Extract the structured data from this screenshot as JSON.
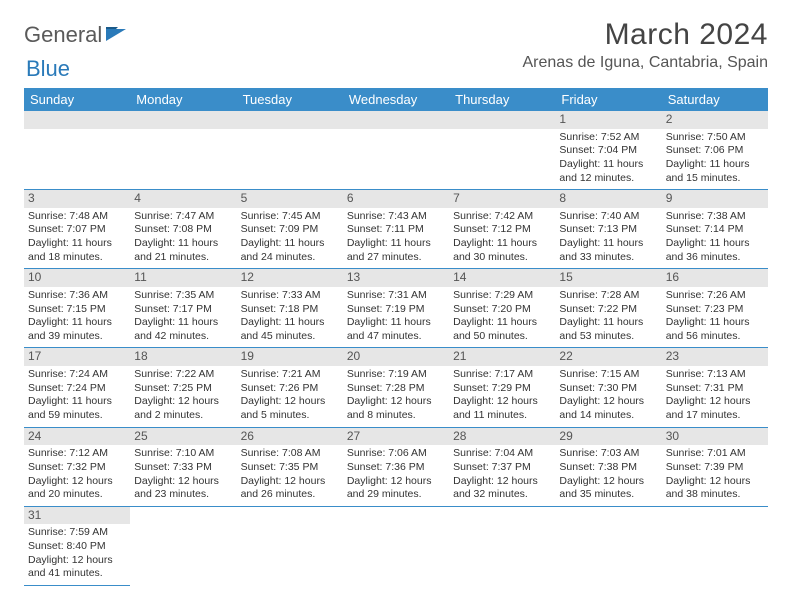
{
  "brand": {
    "part1": "General",
    "part2": "Blue"
  },
  "title": "March 2024",
  "location": "Arenas de Iguna, Cantabria, Spain",
  "colors": {
    "accent": "#3a8dc9",
    "header_bg": "#3a8dc9",
    "day_bar": "#e6e6e6"
  },
  "weekdays": [
    "Sunday",
    "Monday",
    "Tuesday",
    "Wednesday",
    "Thursday",
    "Friday",
    "Saturday"
  ],
  "weeks": [
    [
      null,
      null,
      null,
      null,
      null,
      {
        "n": "1",
        "sunrise": "Sunrise: 7:52 AM",
        "sunset": "Sunset: 7:04 PM",
        "daylight": "Daylight: 11 hours and 12 minutes."
      },
      {
        "n": "2",
        "sunrise": "Sunrise: 7:50 AM",
        "sunset": "Sunset: 7:06 PM",
        "daylight": "Daylight: 11 hours and 15 minutes."
      }
    ],
    [
      {
        "n": "3",
        "sunrise": "Sunrise: 7:48 AM",
        "sunset": "Sunset: 7:07 PM",
        "daylight": "Daylight: 11 hours and 18 minutes."
      },
      {
        "n": "4",
        "sunrise": "Sunrise: 7:47 AM",
        "sunset": "Sunset: 7:08 PM",
        "daylight": "Daylight: 11 hours and 21 minutes."
      },
      {
        "n": "5",
        "sunrise": "Sunrise: 7:45 AM",
        "sunset": "Sunset: 7:09 PM",
        "daylight": "Daylight: 11 hours and 24 minutes."
      },
      {
        "n": "6",
        "sunrise": "Sunrise: 7:43 AM",
        "sunset": "Sunset: 7:11 PM",
        "daylight": "Daylight: 11 hours and 27 minutes."
      },
      {
        "n": "7",
        "sunrise": "Sunrise: 7:42 AM",
        "sunset": "Sunset: 7:12 PM",
        "daylight": "Daylight: 11 hours and 30 minutes."
      },
      {
        "n": "8",
        "sunrise": "Sunrise: 7:40 AM",
        "sunset": "Sunset: 7:13 PM",
        "daylight": "Daylight: 11 hours and 33 minutes."
      },
      {
        "n": "9",
        "sunrise": "Sunrise: 7:38 AM",
        "sunset": "Sunset: 7:14 PM",
        "daylight": "Daylight: 11 hours and 36 minutes."
      }
    ],
    [
      {
        "n": "10",
        "sunrise": "Sunrise: 7:36 AM",
        "sunset": "Sunset: 7:15 PM",
        "daylight": "Daylight: 11 hours and 39 minutes."
      },
      {
        "n": "11",
        "sunrise": "Sunrise: 7:35 AM",
        "sunset": "Sunset: 7:17 PM",
        "daylight": "Daylight: 11 hours and 42 minutes."
      },
      {
        "n": "12",
        "sunrise": "Sunrise: 7:33 AM",
        "sunset": "Sunset: 7:18 PM",
        "daylight": "Daylight: 11 hours and 45 minutes."
      },
      {
        "n": "13",
        "sunrise": "Sunrise: 7:31 AM",
        "sunset": "Sunset: 7:19 PM",
        "daylight": "Daylight: 11 hours and 47 minutes."
      },
      {
        "n": "14",
        "sunrise": "Sunrise: 7:29 AM",
        "sunset": "Sunset: 7:20 PM",
        "daylight": "Daylight: 11 hours and 50 minutes."
      },
      {
        "n": "15",
        "sunrise": "Sunrise: 7:28 AM",
        "sunset": "Sunset: 7:22 PM",
        "daylight": "Daylight: 11 hours and 53 minutes."
      },
      {
        "n": "16",
        "sunrise": "Sunrise: 7:26 AM",
        "sunset": "Sunset: 7:23 PM",
        "daylight": "Daylight: 11 hours and 56 minutes."
      }
    ],
    [
      {
        "n": "17",
        "sunrise": "Sunrise: 7:24 AM",
        "sunset": "Sunset: 7:24 PM",
        "daylight": "Daylight: 11 hours and 59 minutes."
      },
      {
        "n": "18",
        "sunrise": "Sunrise: 7:22 AM",
        "sunset": "Sunset: 7:25 PM",
        "daylight": "Daylight: 12 hours and 2 minutes."
      },
      {
        "n": "19",
        "sunrise": "Sunrise: 7:21 AM",
        "sunset": "Sunset: 7:26 PM",
        "daylight": "Daylight: 12 hours and 5 minutes."
      },
      {
        "n": "20",
        "sunrise": "Sunrise: 7:19 AM",
        "sunset": "Sunset: 7:28 PM",
        "daylight": "Daylight: 12 hours and 8 minutes."
      },
      {
        "n": "21",
        "sunrise": "Sunrise: 7:17 AM",
        "sunset": "Sunset: 7:29 PM",
        "daylight": "Daylight: 12 hours and 11 minutes."
      },
      {
        "n": "22",
        "sunrise": "Sunrise: 7:15 AM",
        "sunset": "Sunset: 7:30 PM",
        "daylight": "Daylight: 12 hours and 14 minutes."
      },
      {
        "n": "23",
        "sunrise": "Sunrise: 7:13 AM",
        "sunset": "Sunset: 7:31 PM",
        "daylight": "Daylight: 12 hours and 17 minutes."
      }
    ],
    [
      {
        "n": "24",
        "sunrise": "Sunrise: 7:12 AM",
        "sunset": "Sunset: 7:32 PM",
        "daylight": "Daylight: 12 hours and 20 minutes."
      },
      {
        "n": "25",
        "sunrise": "Sunrise: 7:10 AM",
        "sunset": "Sunset: 7:33 PM",
        "daylight": "Daylight: 12 hours and 23 minutes."
      },
      {
        "n": "26",
        "sunrise": "Sunrise: 7:08 AM",
        "sunset": "Sunset: 7:35 PM",
        "daylight": "Daylight: 12 hours and 26 minutes."
      },
      {
        "n": "27",
        "sunrise": "Sunrise: 7:06 AM",
        "sunset": "Sunset: 7:36 PM",
        "daylight": "Daylight: 12 hours and 29 minutes."
      },
      {
        "n": "28",
        "sunrise": "Sunrise: 7:04 AM",
        "sunset": "Sunset: 7:37 PM",
        "daylight": "Daylight: 12 hours and 32 minutes."
      },
      {
        "n": "29",
        "sunrise": "Sunrise: 7:03 AM",
        "sunset": "Sunset: 7:38 PM",
        "daylight": "Daylight: 12 hours and 35 minutes."
      },
      {
        "n": "30",
        "sunrise": "Sunrise: 7:01 AM",
        "sunset": "Sunset: 7:39 PM",
        "daylight": "Daylight: 12 hours and 38 minutes."
      }
    ],
    [
      {
        "n": "31",
        "sunrise": "Sunrise: 7:59 AM",
        "sunset": "Sunset: 8:40 PM",
        "daylight": "Daylight: 12 hours and 41 minutes."
      },
      null,
      null,
      null,
      null,
      null,
      null
    ]
  ]
}
